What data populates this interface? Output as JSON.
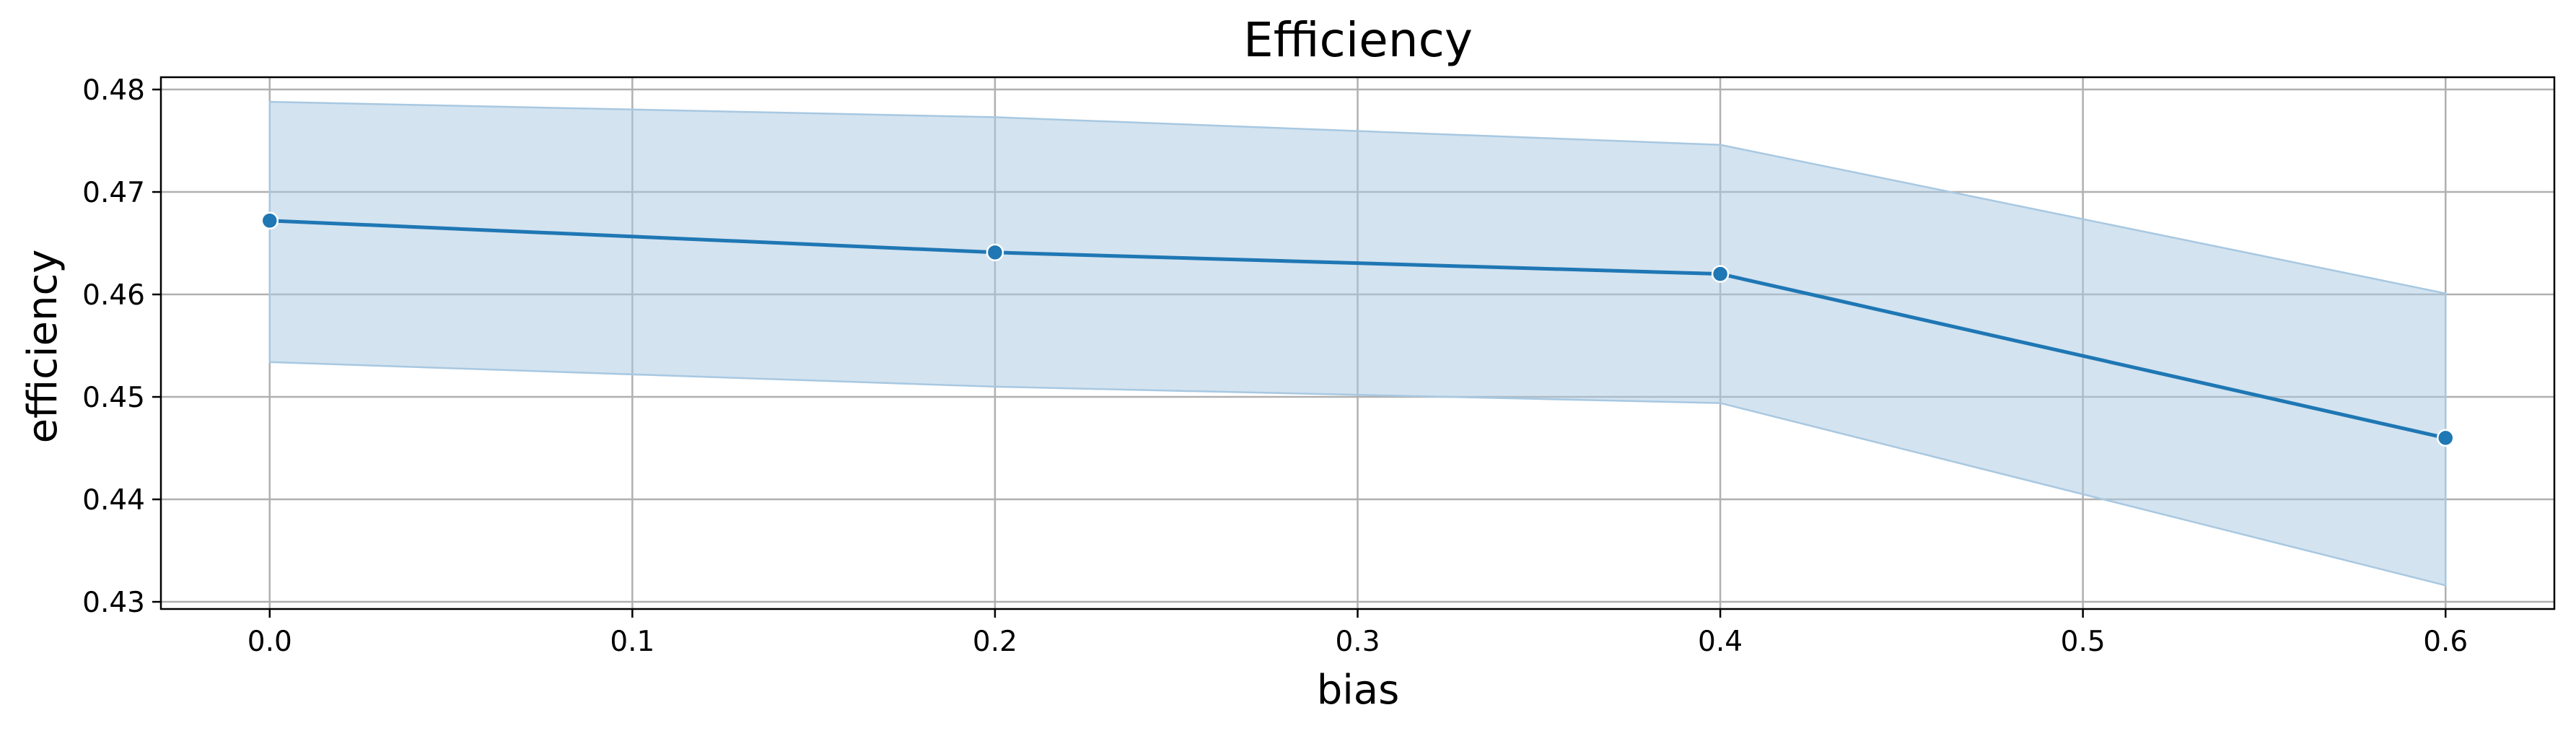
{
  "chart_data": {
    "type": "line",
    "title": "Efficiency",
    "xlabel": "bias",
    "ylabel": "efficiency",
    "x": [
      0.0,
      0.2,
      0.4,
      0.6
    ],
    "series": [
      {
        "values": [
          0.4672,
          0.4641,
          0.462,
          0.446
        ],
        "ci_lower": [
          0.4534,
          0.451,
          0.4494,
          0.4316
        ],
        "ci_upper": [
          0.4788,
          0.4773,
          0.4746,
          0.4601
        ],
        "color": "#1f77b4"
      }
    ],
    "xlim": [
      -0.03,
      0.63
    ],
    "ylim": [
      0.4293,
      0.4812
    ],
    "x_ticks": [
      0.0,
      0.1,
      0.2,
      0.3,
      0.4,
      0.5,
      0.6
    ],
    "x_tick_labels": [
      "0.0",
      "0.1",
      "0.2",
      "0.3",
      "0.4",
      "0.5",
      "0.6"
    ],
    "y_ticks": [
      0.43,
      0.44,
      0.45,
      0.46,
      0.47,
      0.48
    ],
    "y_tick_labels": [
      "0.43",
      "0.44",
      "0.45",
      "0.46",
      "0.47",
      "0.48"
    ],
    "grid": true,
    "band_color": "#a8c8e1",
    "grid_color": "#b0b0b0"
  }
}
